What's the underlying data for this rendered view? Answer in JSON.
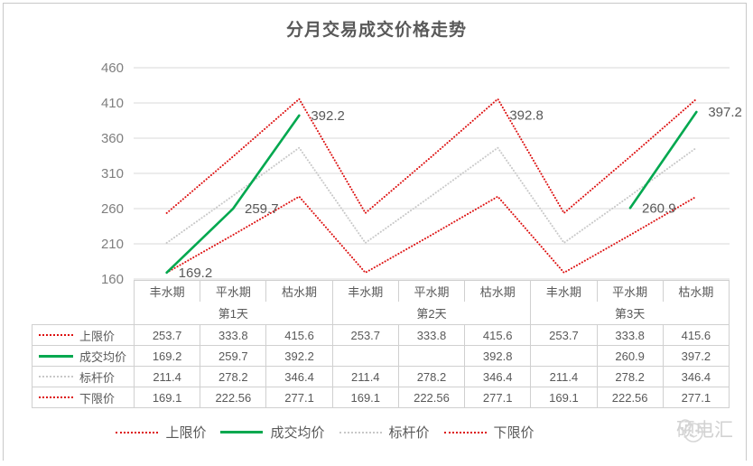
{
  "page": {
    "title": "分月交易成交价格走势",
    "watermark_text": "硕电汇"
  },
  "colors": {
    "limit_red": "#dd1111",
    "avg_green": "#00a84f",
    "benchmark_gray": "#c8c8c8",
    "grid": "#d9d9d9",
    "tick_text": "#7f7f7f",
    "label_text": "#595959",
    "table_border": "#d0d0d0"
  },
  "chart_data": {
    "type": "line",
    "title": "分月交易成交价格走势",
    "xlabel": "",
    "ylabel": "",
    "ylim": [
      160,
      460
    ],
    "y_ticks": [
      460,
      410,
      360,
      310,
      260,
      210,
      160
    ],
    "grid": true,
    "legend_position": "bottom",
    "day_groups": [
      "第1天",
      "第2天",
      "第3天"
    ],
    "periods": [
      "丰水期",
      "平水期",
      "枯水期"
    ],
    "categories": [
      "丰水期",
      "平水期",
      "枯水期",
      "丰水期",
      "平水期",
      "枯水期",
      "丰水期",
      "平水期",
      "枯水期"
    ],
    "series": [
      {
        "name": "上限价",
        "style": "dotted",
        "color": "#dd1111",
        "values": [
          253.7,
          333.8,
          415.6,
          253.7,
          333.8,
          415.6,
          253.7,
          333.8,
          415.6
        ]
      },
      {
        "name": "标杆价",
        "style": "dotted",
        "color": "#c8c8c8",
        "values": [
          211.4,
          278.2,
          346.4,
          211.4,
          278.2,
          346.4,
          211.4,
          278.2,
          346.4
        ]
      },
      {
        "name": "下限价",
        "style": "dotted",
        "color": "#dd1111",
        "values": [
          169.1,
          222.56,
          277.1,
          169.1,
          222.56,
          277.1,
          169.1,
          222.56,
          277.1
        ]
      },
      {
        "name": "成交均价",
        "style": "solid",
        "color": "#00a84f",
        "show_labels": true,
        "values": [
          169.2,
          259.7,
          392.2,
          null,
          null,
          392.8,
          null,
          260.9,
          397.2
        ]
      }
    ]
  },
  "table": {
    "row_headers": [
      {
        "label": "上限价",
        "swatch": "red-dotted"
      },
      {
        "label": "成交均价",
        "swatch": "green-solid"
      },
      {
        "label": "标杆价",
        "swatch": "gray-dotted"
      },
      {
        "label": "下限价",
        "swatch": "red-dotted"
      }
    ],
    "rows": [
      [
        "253.7",
        "333.8",
        "415.6",
        "253.7",
        "333.8",
        "415.6",
        "253.7",
        "333.8",
        "415.6"
      ],
      [
        "169.2",
        "259.7",
        "392.2",
        "",
        "",
        "392.8",
        "",
        "260.9",
        "397.2"
      ],
      [
        "211.4",
        "278.2",
        "346.4",
        "211.4",
        "278.2",
        "346.4",
        "211.4",
        "278.2",
        "346.4"
      ],
      [
        "169.1",
        "222.56",
        "277.1",
        "169.1",
        "222.56",
        "277.1",
        "169.1",
        "222.56",
        "277.1"
      ]
    ]
  },
  "legend": {
    "items": [
      {
        "label": "上限价",
        "style": "red-dotted"
      },
      {
        "label": "成交均价",
        "style": "green-solid"
      },
      {
        "label": "标杆价",
        "style": "gray-dotted"
      },
      {
        "label": "下限价",
        "style": "red-dotted"
      }
    ]
  }
}
